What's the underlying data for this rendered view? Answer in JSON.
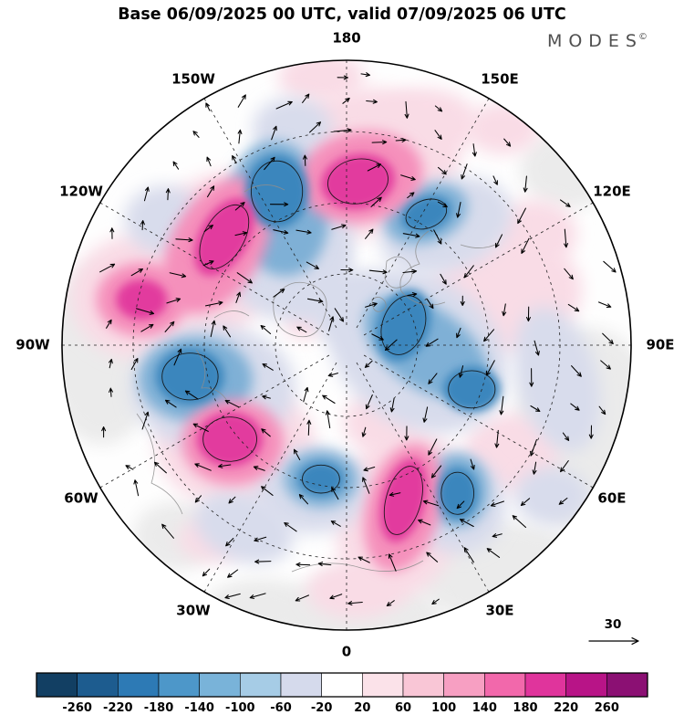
{
  "header": {
    "title": "Base 06/09/2025 00 UTC, valid 07/09/2025 06 UTC",
    "logo_text": "MODES",
    "logo_mark": "©"
  },
  "map": {
    "longitude_labels": [
      {
        "label": "180",
        "angle": 0
      },
      {
        "label": "150E",
        "angle": 30
      },
      {
        "label": "120E",
        "angle": 60
      },
      {
        "label": "90E",
        "angle": 90
      },
      {
        "label": "60E",
        "angle": 120
      },
      {
        "label": "30E",
        "angle": 150
      },
      {
        "label": "0",
        "angle": 180
      },
      {
        "label": "30W",
        "angle": 210
      },
      {
        "label": "60W",
        "angle": 240
      },
      {
        "label": "90W",
        "angle": 270
      },
      {
        "label": "120W",
        "angle": 300
      },
      {
        "label": "150W",
        "angle": 330
      }
    ],
    "latitude_circle_fractions": [
      0.25,
      0.5,
      0.75
    ]
  },
  "chart_data": {
    "type": "heatmap",
    "projection": "north-polar-stereographic",
    "title": "Base 06/09/2025 00 UTC, valid 07/09/2025 06 UTC",
    "source_logo": "MODES©",
    "field_description": "Filled anomaly field over the Northern Hemisphere with overlaid wind vector arrows, dashed graticule every 30 degrees longitude, black contours around strongest anomaly centers",
    "colorbar": {
      "orientation": "horizontal",
      "levels": [
        -260,
        -220,
        -180,
        -140,
        -100,
        -60,
        -20,
        20,
        60,
        100,
        140,
        180,
        220,
        260
      ],
      "colors": [
        "#123f63",
        "#1d5c8f",
        "#2d7ab5",
        "#4d97c9",
        "#79b3d9",
        "#a6cce6",
        "#d5daec",
        "#ffffff",
        "#fbe2e9",
        "#f9c6d6",
        "#f79fc2",
        "#f268ab",
        "#e0349c",
        "#b81487",
        "#8b1073"
      ]
    },
    "vector_reference": {
      "value": 30
    },
    "graticule": {
      "longitude_step_deg": 30,
      "latitude_circles": 3
    },
    "level_colors": {
      "land": "#ebebeb",
      "neg1": "#d8dcec",
      "neg2": "#7fb0d6",
      "neg3": "#3a86bd",
      "pos1": "#f9dce6",
      "pos2": "#f590bb",
      "pos3": "#e23a9e"
    },
    "field_blobs": [
      {
        "level": "land",
        "x": 0.85,
        "y": 0.3,
        "rx": 0.26,
        "ry": 0.36
      },
      {
        "level": "land",
        "x": 0.55,
        "y": 0.8,
        "rx": 0.32,
        "ry": 0.18
      },
      {
        "level": "land",
        "x": -0.86,
        "y": 0.03,
        "rx": 0.2,
        "ry": 0.32
      },
      {
        "level": "land",
        "x": 0.78,
        "y": -0.62,
        "rx": 0.17,
        "ry": 0.14
      },
      {
        "level": "land",
        "x": -0.6,
        "y": 0.67,
        "rx": 0.15,
        "ry": 0.12
      },
      {
        "level": "land",
        "x": 0.05,
        "y": 0.95,
        "rx": 0.28,
        "ry": 0.14
      },
      {
        "level": "land",
        "x": -0.3,
        "y": 0.92,
        "rx": 0.2,
        "ry": 0.1
      },
      {
        "level": "pos1",
        "x": 0.06,
        "y": -0.64,
        "rx": 0.34,
        "ry": 0.26,
        "rot": -10
      },
      {
        "level": "pos1",
        "x": 0.28,
        "y": -0.78,
        "rx": 0.18,
        "ry": 0.12
      },
      {
        "level": "pos1",
        "x": -0.49,
        "y": -0.29,
        "rx": 0.24,
        "ry": 0.33,
        "rot": 25
      },
      {
        "level": "pos1",
        "x": -0.72,
        "y": -0.17,
        "rx": 0.25,
        "ry": 0.22
      },
      {
        "level": "pos1",
        "x": -0.39,
        "y": 0.35,
        "rx": 0.28,
        "ry": 0.22
      },
      {
        "level": "pos1",
        "x": 0.19,
        "y": 0.59,
        "rx": 0.22,
        "ry": 0.31,
        "rot": 15
      },
      {
        "level": "pos1",
        "x": 0.55,
        "y": -0.17,
        "rx": 0.28,
        "ry": 0.2,
        "rot": -10
      },
      {
        "level": "pos1",
        "x": 0.66,
        "y": -0.39,
        "rx": 0.15,
        "ry": 0.12
      },
      {
        "level": "pos1",
        "x": 0.58,
        "y": 0.38,
        "rx": 0.17,
        "ry": 0.14
      },
      {
        "level": "pos1",
        "x": 0.03,
        "y": 0.86,
        "rx": 0.17,
        "ry": 0.1
      },
      {
        "level": "pos1",
        "x": 0.12,
        "y": 0.27,
        "rx": 0.13,
        "ry": 0.11
      },
      {
        "level": "pos1",
        "x": 0.55,
        "y": -0.76,
        "rx": 0.13,
        "ry": 0.09
      },
      {
        "level": "pos1",
        "x": -0.09,
        "y": -0.94,
        "rx": 0.15,
        "ry": 0.09
      },
      {
        "level": "pos1",
        "x": -0.47,
        "y": 0.68,
        "rx": 0.12,
        "ry": 0.08
      },
      {
        "level": "pos1",
        "x": -0.15,
        "y": -0.08,
        "rx": 0.07,
        "ry": 0.06
      },
      {
        "level": "neg1",
        "x": -0.22,
        "y": -0.39,
        "rx": 0.24,
        "ry": 0.3
      },
      {
        "level": "neg1",
        "x": 0.35,
        "y": -0.42,
        "rx": 0.24,
        "ry": 0.16,
        "rot": -20
      },
      {
        "level": "neg1",
        "x": -0.47,
        "y": 0.15,
        "rx": 0.29,
        "ry": 0.22
      },
      {
        "level": "neg1",
        "x": 0.25,
        "y": 0.02,
        "rx": 0.34,
        "ry": 0.26,
        "rot": 35
      },
      {
        "level": "neg1",
        "x": -0.12,
        "y": 0.51,
        "rx": 0.2,
        "ry": 0.15
      },
      {
        "level": "neg1",
        "x": 0.39,
        "y": 0.56,
        "rx": 0.17,
        "ry": 0.17
      },
      {
        "level": "neg1",
        "x": -0.19,
        "y": -0.76,
        "rx": 0.14,
        "ry": 0.11
      },
      {
        "level": "neg1",
        "x": 0.74,
        "y": 0.12,
        "rx": 0.14,
        "ry": 0.26,
        "rot": -15
      },
      {
        "level": "neg1",
        "x": -0.11,
        "y": -0.26,
        "rx": 0.11,
        "ry": 0.17,
        "rot": 20
      },
      {
        "level": "neg1",
        "x": -0.36,
        "y": 0.64,
        "rx": 0.18,
        "ry": 0.12,
        "rot": 20
      },
      {
        "level": "neg1",
        "x": 0.02,
        "y": -0.13,
        "rx": 0.15,
        "ry": 0.13
      },
      {
        "level": "neg1",
        "x": 0.72,
        "y": 0.53,
        "rx": 0.13,
        "ry": 0.1
      },
      {
        "level": "neg1",
        "x": -0.64,
        "y": -0.44,
        "rx": 0.14,
        "ry": 0.12
      },
      {
        "level": "neg2",
        "x": -0.235,
        "y": -0.48,
        "rx": 0.17,
        "ry": 0.24,
        "rot": -10
      },
      {
        "level": "neg2",
        "x": 0.28,
        "y": -0.46,
        "rx": 0.15,
        "ry": 0.1,
        "rot": -20
      },
      {
        "level": "neg2",
        "x": -0.53,
        "y": 0.12,
        "rx": 0.2,
        "ry": 0.15
      },
      {
        "level": "neg2",
        "x": 0.28,
        "y": 0.01,
        "rx": 0.25,
        "ry": 0.14,
        "rot": 35
      },
      {
        "level": "neg2",
        "x": -0.09,
        "y": 0.47,
        "rx": 0.13,
        "ry": 0.1
      },
      {
        "level": "neg2",
        "x": 0.39,
        "y": 0.51,
        "rx": 0.11,
        "ry": 0.13
      },
      {
        "level": "pos2",
        "x": 0.05,
        "y": -0.59,
        "rx": 0.22,
        "ry": 0.16,
        "rot": -10
      },
      {
        "level": "pos2",
        "x": -0.455,
        "y": -0.35,
        "rx": 0.16,
        "ry": 0.26,
        "rot": 30
      },
      {
        "level": "pos2",
        "x": -0.72,
        "y": -0.16,
        "rx": 0.16,
        "ry": 0.13
      },
      {
        "level": "pos2",
        "x": -0.4,
        "y": 0.34,
        "rx": 0.18,
        "ry": 0.15
      },
      {
        "level": "pos2",
        "x": 0.2,
        "y": 0.57,
        "rx": 0.13,
        "ry": 0.23,
        "rot": 15
      },
      {
        "level": "neg3",
        "x": -0.245,
        "y": -0.54,
        "rx": 0.11,
        "ry": 0.13,
        "contour": true
      },
      {
        "level": "neg3",
        "x": 0.28,
        "y": -0.46,
        "rx": 0.09,
        "ry": 0.06,
        "rot": -20,
        "contour": true
      },
      {
        "level": "neg3",
        "x": -0.55,
        "y": 0.11,
        "rx": 0.12,
        "ry": 0.1,
        "contour": true
      },
      {
        "level": "neg3",
        "x": 0.2,
        "y": -0.07,
        "rx": 0.09,
        "ry": 0.13,
        "rot": 20,
        "contour": true
      },
      {
        "level": "neg3",
        "x": 0.44,
        "y": 0.155,
        "rx": 0.1,
        "ry": 0.08,
        "contour": true
      },
      {
        "level": "neg3",
        "x": 0.39,
        "y": 0.52,
        "rx": 0.07,
        "ry": 0.09,
        "contour": true
      },
      {
        "level": "neg3",
        "x": -0.09,
        "y": 0.47,
        "rx": 0.08,
        "ry": 0.06,
        "contour": true
      },
      {
        "level": "pos3",
        "x": 0.04,
        "y": -0.575,
        "rx": 0.13,
        "ry": 0.095,
        "rot": -10,
        "contour": true
      },
      {
        "level": "pos3",
        "x": -0.43,
        "y": -0.38,
        "rx": 0.085,
        "ry": 0.15,
        "rot": 30,
        "contour": true
      },
      {
        "level": "pos3",
        "x": -0.41,
        "y": 0.33,
        "rx": 0.115,
        "ry": 0.095,
        "contour": true
      },
      {
        "level": "pos3",
        "x": 0.2,
        "y": 0.545,
        "rx": 0.075,
        "ry": 0.15,
        "rot": 15,
        "contour": true
      },
      {
        "level": "pos3",
        "x": -0.72,
        "y": -0.16,
        "rx": 0.09,
        "ry": 0.07
      }
    ]
  }
}
